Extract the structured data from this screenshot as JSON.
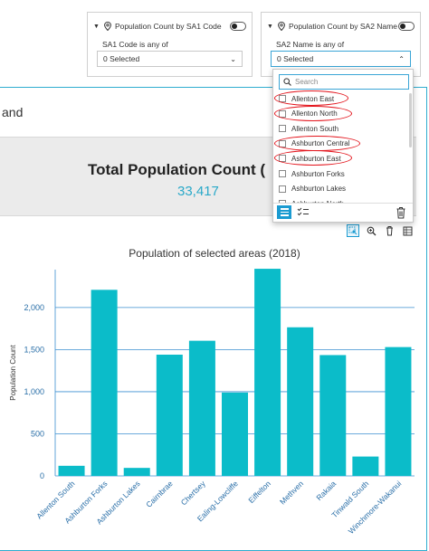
{
  "filters": [
    {
      "title": "Population Count by SA1 Code",
      "label": "SA1 Code is any of",
      "value": "0 Selected"
    },
    {
      "title": "Population Count by SA2 Name",
      "label": "SA2 Name is any of",
      "value": "0 Selected"
    }
  ],
  "partial_heading": "and",
  "indicator": {
    "title": "Total Population Count (",
    "value": "33,417"
  },
  "dropdown": {
    "search_placeholder": "Search",
    "items": [
      "Allenton East",
      "Allenton North",
      "Allenton South",
      "Ashburton Central",
      "Ashburton East",
      "Ashburton Forks",
      "Ashburton Lakes",
      "Ashburton North"
    ],
    "circled": [
      "Allenton East",
      "Allenton North",
      "Ashburton Central",
      "Ashburton East"
    ]
  },
  "colors": {
    "accent": "#2eaccf",
    "bar": "#0bbcc9",
    "circle": "#e3141c",
    "indicator_value": "#2aa9c9"
  },
  "chart_data": {
    "type": "bar",
    "title": "Population of selected areas (2018)",
    "xlabel": "",
    "ylabel": "Population Count",
    "ylim": [
      0,
      2450
    ],
    "yticks": [
      0,
      500,
      1000,
      1500,
      2000
    ],
    "ytick_labels": [
      "0",
      "500",
      "1,000",
      "1,500",
      "2,000"
    ],
    "categories": [
      "Allenton South",
      "Ashburton Forks",
      "Ashburton Lakes",
      "Cairnbrae",
      "Chertsey",
      "Ealing-Lowcliffe",
      "Eiffelton",
      "Methven",
      "Rakaia",
      "Tinwald South",
      "Winchmore-Wakanui"
    ],
    "values": [
      120,
      2210,
      95,
      1440,
      1605,
      990,
      2460,
      1765,
      1435,
      230,
      1530
    ],
    "grid": "horizontal"
  }
}
